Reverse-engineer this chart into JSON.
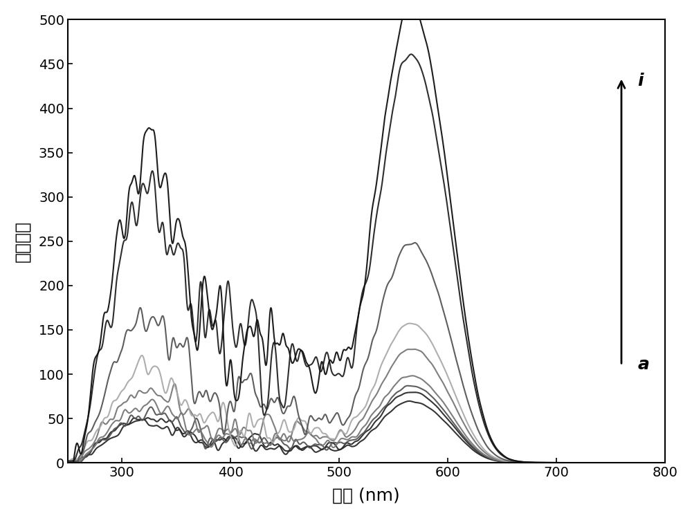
{
  "xlabel": "波长 (nm)",
  "ylabel": "散射强度",
  "xlim": [
    250,
    800
  ],
  "ylim": [
    0,
    500
  ],
  "xticks": [
    300,
    400,
    500,
    600,
    700,
    800
  ],
  "yticks": [
    0,
    50,
    100,
    150,
    200,
    250,
    300,
    350,
    400,
    450,
    500
  ],
  "arrow_label_top": "i",
  "arrow_label_bottom": "a",
  "background_color": "#ffffff",
  "scales": [
    0.135,
    0.155,
    0.168,
    0.19,
    0.25,
    0.305,
    0.48,
    0.895,
    1.0
  ],
  "colors": [
    "#2a2a2a",
    "#2a2a2a",
    "#555555",
    "#777777",
    "#777777",
    "#aaaaaa",
    "#555555",
    "#222222",
    "#111111"
  ]
}
